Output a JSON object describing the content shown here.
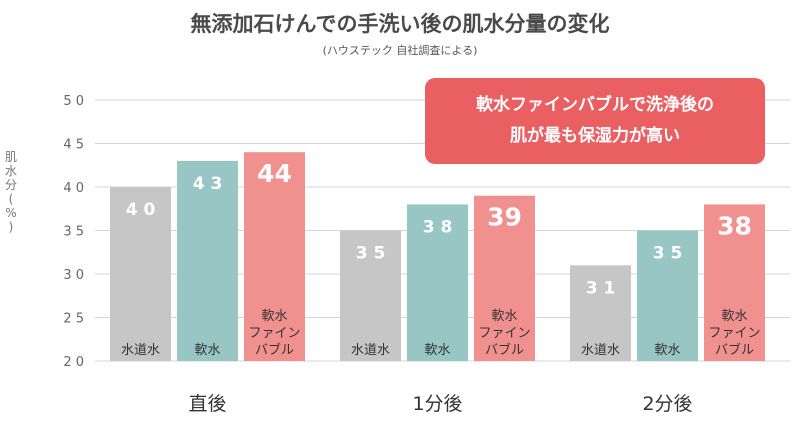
{
  "title": "無添加石けんでの手洗い後の肌水分量の変化",
  "subtitle": "(ハウステック 自社調査による)",
  "callout": {
    "line1": "軟水ファインバブルで洗浄後の",
    "line2": "肌が最も保湿力が高い"
  },
  "colors": {
    "gray": "#c6c6c6",
    "teal": "#98c6c4",
    "pink": "#f0908f",
    "callout": "#ea5f62",
    "grid": "#d4d4d4",
    "value_text": "#ffffff",
    "bar_label_text": "#333333"
  },
  "chart_data": {
    "type": "bar",
    "title": "無添加石けんでの手洗い後の肌水分量の変化",
    "subtitle": "(ハウステック 自社調査による)",
    "ylabel": "肌水分(%)",
    "xlabel": "",
    "ylim": [
      20,
      50
    ],
    "yticks": [
      20,
      25,
      30,
      35,
      40,
      45,
      50
    ],
    "ytick_labels": [
      "2 0",
      "2 5",
      "3 0",
      "3 5",
      "4 0",
      "4 5",
      "5 0"
    ],
    "grid": true,
    "categories": [
      "直後",
      "1分後",
      "2分後"
    ],
    "series": [
      {
        "name": "水道水",
        "label_lines": [
          "水道水"
        ],
        "color": "#c6c6c6",
        "highlight": false,
        "values": [
          40,
          35,
          31
        ],
        "value_labels": [
          "4 0",
          "3 5",
          "3 1"
        ]
      },
      {
        "name": "軟水",
        "label_lines": [
          "軟水"
        ],
        "color": "#98c6c4",
        "highlight": false,
        "values": [
          43,
          38,
          35
        ],
        "value_labels": [
          "4 3",
          "3 8",
          "3 5"
        ]
      },
      {
        "name": "軟水ファインバブル",
        "label_lines": [
          "軟水",
          "ファイン",
          "バブル"
        ],
        "color": "#f0908f",
        "highlight": true,
        "values": [
          44,
          39,
          38
        ],
        "value_labels": [
          "44",
          "39",
          "38"
        ]
      }
    ]
  }
}
